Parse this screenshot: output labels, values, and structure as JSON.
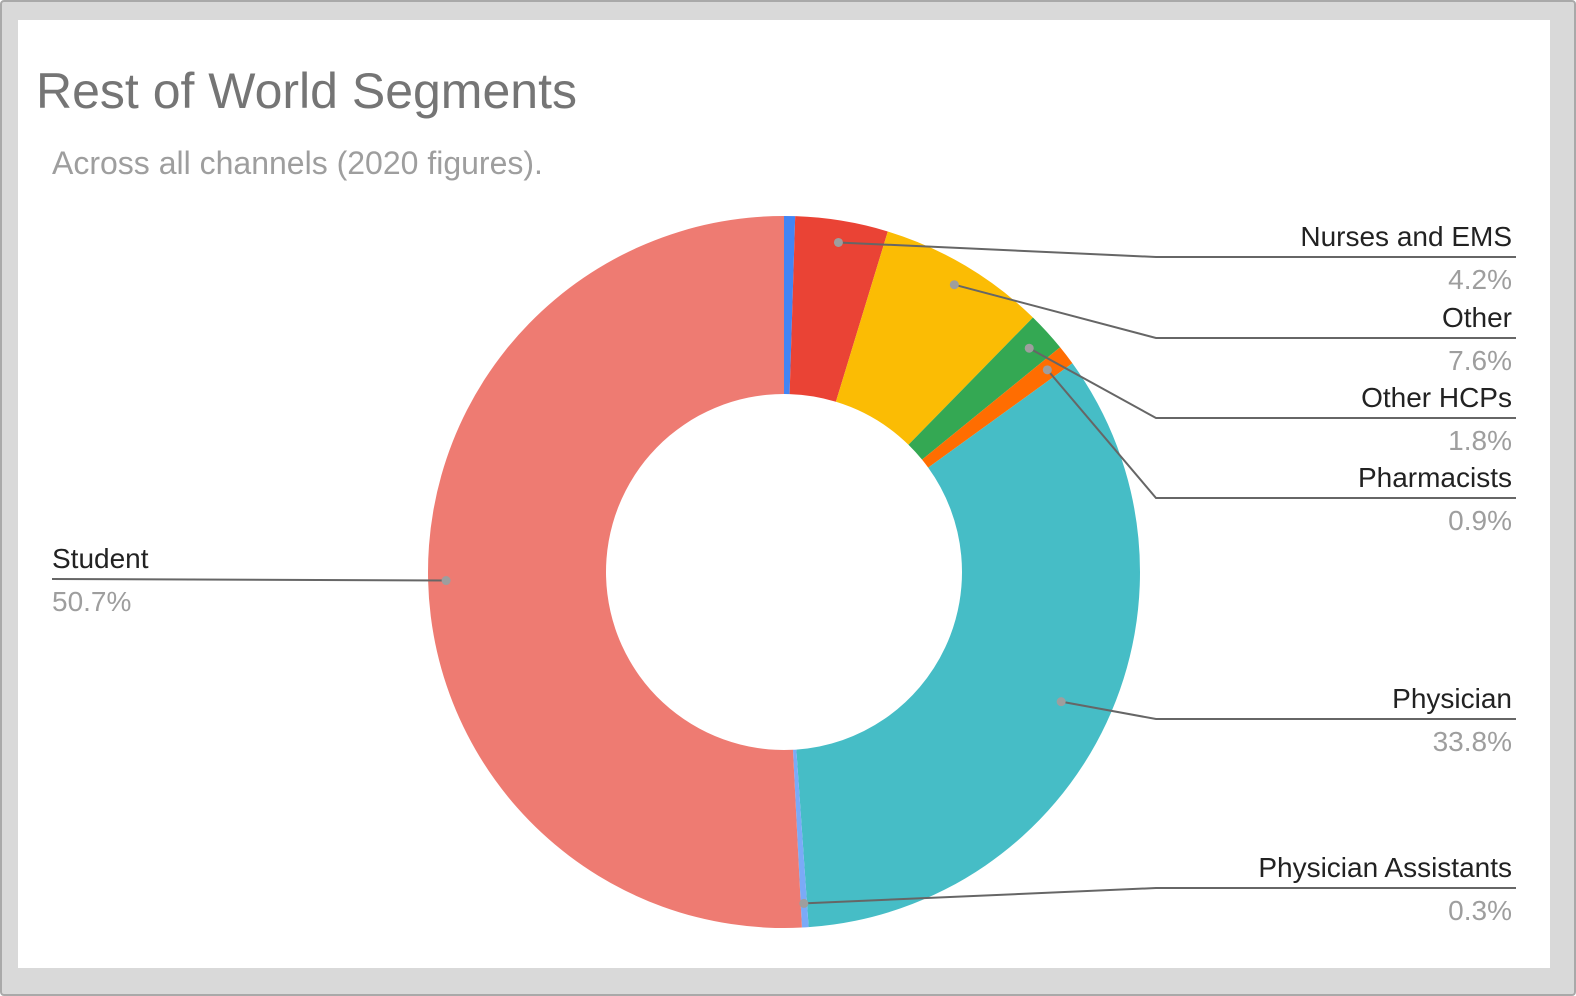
{
  "chart_data": {
    "type": "pie",
    "style": "donut",
    "title": "Rest of World Segments",
    "subtitle": "Across all channels (2020 figures).",
    "legend": "none",
    "slices": [
      {
        "label": "",
        "value": 0.5,
        "pct_text": "",
        "color": "#4285f4",
        "side": "none"
      },
      {
        "label": "Nurses and EMS",
        "value": 4.2,
        "pct_text": "4.2%",
        "color": "#ea4335",
        "side": "right"
      },
      {
        "label": "Other",
        "value": 7.6,
        "pct_text": "7.6%",
        "color": "#fbbc04",
        "side": "right"
      },
      {
        "label": "Other HCPs",
        "value": 1.8,
        "pct_text": "1.8%",
        "color": "#34a853",
        "side": "right"
      },
      {
        "label": "Pharmacists",
        "value": 0.9,
        "pct_text": "0.9%",
        "color": "#ff6d01",
        "side": "right"
      },
      {
        "label": "Physician",
        "value": 33.8,
        "pct_text": "33.8%",
        "color": "#46bdc6",
        "side": "right"
      },
      {
        "label": "Physician Assistants",
        "value": 0.3,
        "pct_text": "0.3%",
        "color": "#7baaf7",
        "side": "right"
      },
      {
        "label": "Student",
        "value": 50.7,
        "pct_text": "50.7%",
        "color": "#ee7b72",
        "side": "left"
      }
    ]
  }
}
